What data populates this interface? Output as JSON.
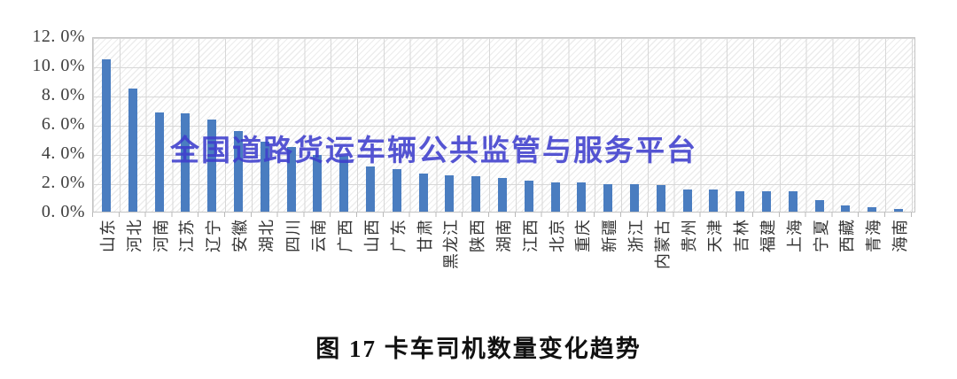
{
  "chart_data": {
    "type": "bar",
    "title": "",
    "xlabel": "",
    "ylabel": "",
    "categories": [
      "山东",
      "河北",
      "河南",
      "江苏",
      "辽宁",
      "安徽",
      "湖北",
      "四川",
      "云南",
      "广西",
      "山西",
      "广东",
      "甘肃",
      "黑龙江",
      "陕西",
      "湖南",
      "江西",
      "北京",
      "重庆",
      "新疆",
      "浙江",
      "内蒙古",
      "贵州",
      "天津",
      "吉林",
      "福建",
      "上海",
      "宁夏",
      "西藏",
      "青海",
      "海南"
    ],
    "values": [
      10.4,
      8.4,
      6.8,
      6.7,
      6.3,
      5.5,
      4.8,
      4.4,
      3.9,
      3.8,
      3.1,
      2.9,
      2.6,
      2.5,
      2.4,
      2.3,
      2.1,
      2.0,
      2.0,
      1.9,
      1.9,
      1.8,
      1.5,
      1.5,
      1.4,
      1.4,
      1.4,
      0.8,
      0.4,
      0.3,
      0.2
    ],
    "ylim": [
      0,
      12
    ],
    "ytick_step": 2,
    "ytick_labels": [
      "0. 0%",
      "2. 0%",
      "4. 0%",
      "6. 0%",
      "8. 0%",
      "10. 0%",
      "12. 0%"
    ],
    "grid": "both",
    "legend": "none",
    "bar_color": "#4a7dc0"
  },
  "watermark": {
    "text": "全国道路货运车辆公共监管与服务平台",
    "color": "#3e3ecd"
  },
  "caption": {
    "text": "图 17 卡车司机数量变化趋势"
  }
}
